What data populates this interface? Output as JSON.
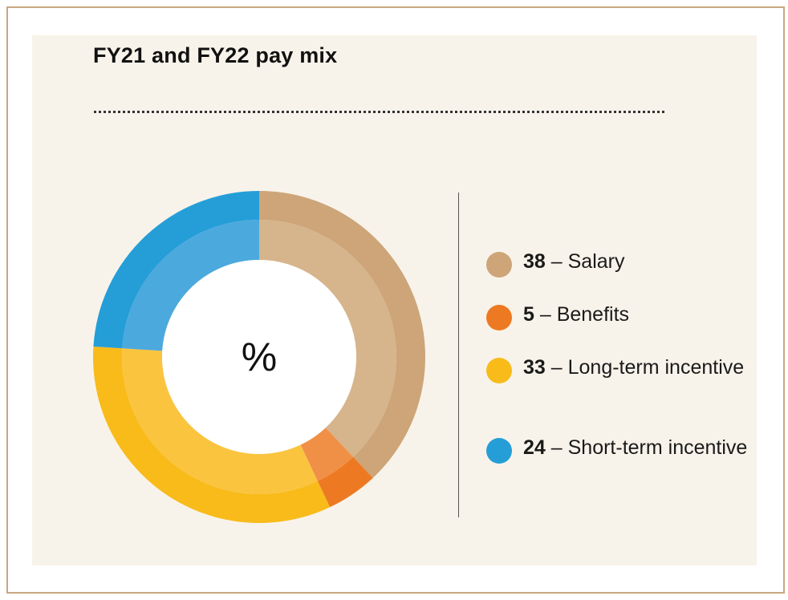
{
  "chart_data": {
    "type": "pie",
    "title": "FY21 and FY22 pay mix",
    "center_label": "%",
    "categories": [
      "Salary",
      "Benefits",
      "Long-term incentive",
      "Short-term incentive"
    ],
    "values": [
      38,
      5,
      33,
      24
    ],
    "legend": [
      {
        "value": "38",
        "dash": " – ",
        "label": "Salary",
        "color": "#cda578"
      },
      {
        "value": "5",
        "dash": " – ",
        "label": "Benefits",
        "color": "#ed7a22"
      },
      {
        "value": "33",
        "dash": " – ",
        "label": "Long-term incentive",
        "color": "#f8bb1a"
      },
      {
        "value": "24",
        "dash": " – ",
        "label": "Short-term incentive",
        "color": "#259ed8"
      }
    ],
    "inner_colors": [
      "#d6b48c",
      "#f09047",
      "#fbc43f",
      "#4ba9dd"
    ],
    "legend_position": "right"
  }
}
